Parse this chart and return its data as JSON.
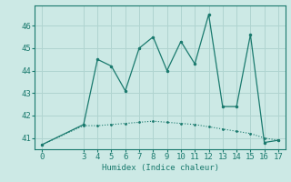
{
  "line1_x": [
    0,
    3,
    4,
    5,
    6,
    7,
    8,
    9,
    10,
    11,
    12,
    13,
    14,
    15,
    16,
    17
  ],
  "line1_y": [
    40.7,
    41.6,
    44.5,
    44.2,
    43.1,
    45.0,
    45.5,
    44.0,
    45.3,
    44.3,
    46.5,
    42.4,
    42.4,
    45.6,
    40.8,
    40.9
  ],
  "line2_x": [
    0,
    3,
    4,
    5,
    6,
    7,
    8,
    9,
    10,
    11,
    12,
    13,
    14,
    15,
    16,
    17
  ],
  "line2_y": [
    40.7,
    41.55,
    41.55,
    41.6,
    41.65,
    41.7,
    41.75,
    41.7,
    41.65,
    41.6,
    41.5,
    41.4,
    41.3,
    41.2,
    41.0,
    40.9
  ],
  "line_color": "#1a7a6e",
  "bg_color": "#cce9e5",
  "grid_color": "#b0d4d0",
  "xlabel": "Humidex (Indice chaleur)",
  "ylim": [
    40.5,
    46.9
  ],
  "xlim": [
    -0.5,
    17.5
  ],
  "yticks": [
    41,
    42,
    43,
    44,
    45,
    46
  ],
  "xticks": [
    0,
    3,
    4,
    5,
    6,
    7,
    8,
    9,
    10,
    11,
    12,
    13,
    14,
    15,
    16,
    17
  ],
  "xlabel_fontsize": 6.5,
  "tick_fontsize": 6.5
}
